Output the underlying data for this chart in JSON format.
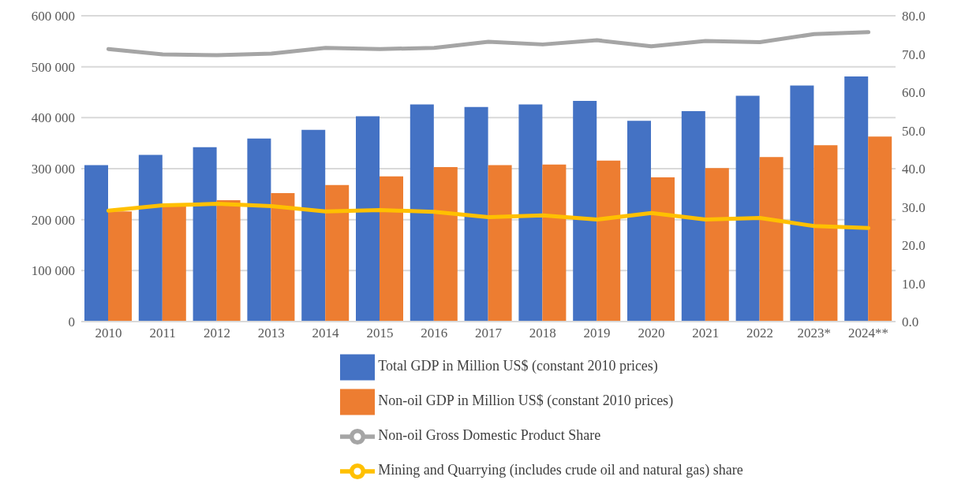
{
  "chart_data": {
    "type": "bar",
    "categories": [
      "2010",
      "2011",
      "2012",
      "2013",
      "2014",
      "2015",
      "2016",
      "2017",
      "2018",
      "2019",
      "2020",
      "2021",
      "2022",
      "2023*",
      "2024**"
    ],
    "series": [
      {
        "name": "Total GDP in Million US$ (constant 2010 prices)",
        "color": "#4472c4",
        "values": [
          307000,
          327000,
          342000,
          359000,
          376000,
          403000,
          426000,
          421000,
          426000,
          433000,
          394000,
          413000,
          443000,
          463000,
          481000
        ]
      },
      {
        "name": "Non-oil GDP in Million US$ (constant 2010 prices)",
        "color": "#ed7d31",
        "values": [
          216000,
          226000,
          238000,
          252000,
          268000,
          285000,
          303000,
          307000,
          308000,
          316000,
          283000,
          301000,
          323000,
          346000,
          363000
        ]
      },
      {
        "name": "Non-oil Gross Domestic Product Share",
        "type": "line",
        "axis": "y2",
        "color": "#a5a5a5",
        "values": [
          71.3,
          69.9,
          69.7,
          70.1,
          71.6,
          71.3,
          71.6,
          73.2,
          72.5,
          73.6,
          72.0,
          73.4,
          73.1,
          75.2,
          75.7
        ]
      },
      {
        "name": "Mining and Quarrying (includes crude oil and natural gas) share",
        "type": "line",
        "axis": "y2",
        "color": "#ffc000",
        "values": [
          29.0,
          30.4,
          30.8,
          30.2,
          28.8,
          29.2,
          28.7,
          27.3,
          27.8,
          26.7,
          28.4,
          26.7,
          27.1,
          25.0,
          24.5
        ]
      }
    ],
    "ylim": [
      0,
      600000
    ],
    "yticks": [
      0,
      {
        "value": 100000,
        "label": "100 000"
      },
      {
        "value": 200000,
        "label": "200 000"
      },
      {
        "value": 300000,
        "label": "300 000"
      },
      {
        "value": 400000,
        "label": "400 000"
      },
      {
        "value": 500000,
        "label": "500 000"
      },
      {
        "value": 600000,
        "label": "600 000"
      }
    ],
    "y2lim": [
      0,
      80
    ],
    "y2ticks": [
      {
        "value": 0,
        "label": "0.0"
      },
      {
        "value": 10,
        "label": "10.0"
      },
      {
        "value": 20,
        "label": "20.0"
      },
      {
        "value": 30,
        "label": "30.0"
      },
      {
        "value": 40,
        "label": "40.0"
      },
      {
        "value": 50,
        "label": "50.0"
      },
      {
        "value": 60,
        "label": "60.0"
      },
      {
        "value": 70,
        "label": "70.0"
      },
      {
        "value": 80,
        "label": "80.0"
      }
    ],
    "grid": "y",
    "legend": "bottom",
    "marker": "none",
    "line_style": "solid"
  }
}
